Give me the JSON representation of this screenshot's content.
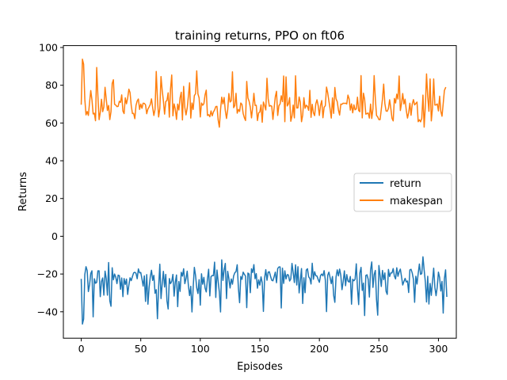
{
  "chart_data": {
    "type": "line",
    "title": "training returns, PPO on ft06",
    "xlabel": "Episodes",
    "ylabel": "Returns",
    "xlim": [
      -15,
      315
    ],
    "ylim": [
      -54,
      101
    ],
    "xticks": [
      0,
      50,
      100,
      150,
      200,
      250,
      300
    ],
    "yticks": [
      -40,
      -20,
      0,
      20,
      40,
      60,
      80,
      100
    ],
    "grid": false,
    "legend": "center-right",
    "series": [
      {
        "name": "return",
        "color": "#1f77b4",
        "values": [
          -22.9,
          -46.5,
          -43.9,
          -20.3,
          -16.1,
          -18.2,
          -29.3,
          -25.6,
          -19.7,
          -18.3,
          -42.7,
          -22.5,
          -24.9,
          -24.4,
          -18.3,
          -18.3,
          -32.0,
          -24.0,
          -22.1,
          -31.2,
          -18.5,
          -22.4,
          -31.2,
          -13.9,
          -34.2,
          -37.1,
          -16.7,
          -23.1,
          -20.0,
          -21.6,
          -25.1,
          -20.6,
          -20.8,
          -28.1,
          -22.1,
          -32.0,
          -22.4,
          -25.5,
          -22.7,
          -30.8,
          -25.9,
          -22.0,
          -23.5,
          -21.3,
          -19.4,
          -19.1,
          -19.6,
          -22.5,
          -17.3,
          -19.4,
          -19.2,
          -22.6,
          -26.4,
          -21.0,
          -34.5,
          -20.3,
          -36.0,
          -27.1,
          -21.4,
          -18.0,
          -23.4,
          -20.7,
          -30.2,
          -28.3,
          -43.7,
          -27.1,
          -14.8,
          -33.0,
          -25.2,
          -18.6,
          -26.9,
          -20.2,
          -34.2,
          -38.5,
          -22.4,
          -25.1,
          -23.9,
          -20.2,
          -31.7,
          -24.4,
          -20.5,
          -37.3,
          -24.0,
          -29.2,
          -19.1,
          -21.1,
          -17.2,
          -25.1,
          -22.4,
          -18.5,
          -26.1,
          -31.4,
          -26.5,
          -40.1,
          -27.3,
          -16.5,
          -20.7,
          -27.4,
          -30.3,
          -23.0,
          -36.5,
          -19.9,
          -25.4,
          -21.8,
          -27.4,
          -29.5,
          -22.7,
          -17.5,
          -31.6,
          -21.4,
          -20.8,
          -20.9,
          -13.7,
          -32.4,
          -17.9,
          -24.0,
          -29.6,
          -40.1,
          -12.5,
          -23.4,
          -17.9,
          -14.4,
          -33.0,
          -18.6,
          -22.4,
          -27.4,
          -22.6,
          -25.4,
          -21.0,
          -19.3,
          -18.7,
          -15.1,
          -27.5,
          -35.2,
          -21.3,
          -22.8,
          -19.0,
          -20.2,
          -21.1,
          -37.8,
          -19.5,
          -20.0,
          -29.9,
          -17.2,
          -19.2,
          -15.0,
          -22.5,
          -19.8,
          -27.5,
          -23.1,
          -25.9,
          -21.5,
          -24.6,
          -39.8,
          -22.2,
          -17.7,
          -23.3,
          -19.0,
          -18.8,
          -21.2,
          -23.3,
          -23.6,
          -21.4,
          -19.0,
          -24.6,
          -17.1,
          -16.3,
          -16.2,
          -38.0,
          -16.9,
          -25.0,
          -18.3,
          -22.6,
          -20.3,
          -20.5,
          -23.7,
          -22.6,
          -14.4,
          -19.2,
          -24.5,
          -15.1,
          -25.8,
          -16.1,
          -30.0,
          -23.6,
          -17.1,
          -35.6,
          -22.0,
          -29.9,
          -17.9,
          -17.2,
          -21.5,
          -22.3,
          -25.3,
          -14.3,
          -22.8,
          -18.8,
          -20.9,
          -21.1,
          -22.9,
          -24.4,
          -20.8,
          -20.0,
          -21.0,
          -18.2,
          -23.2,
          -39.9,
          -20.7,
          -19.0,
          -21.9,
          -25.1,
          -21.3,
          -31.3,
          -35.0,
          -21.6,
          -17.8,
          -21.0,
          -17.4,
          -20.7,
          -28.3,
          -24.1,
          -18.3,
          -26.2,
          -20.3,
          -23.7,
          -24.3,
          -21.3,
          -36.0,
          -22.8,
          -23.6,
          -22.8,
          -14.6,
          -27.5,
          -36.2,
          -19.5,
          -16.5,
          -28.7,
          -24.8,
          -42.0,
          -20.8,
          -20.4,
          -22.8,
          -32.2,
          -17.8,
          -13.6,
          -27.1,
          -20.3,
          -18.1,
          -33.7,
          -41.8,
          -15.5,
          -20.9,
          -26.6,
          -18.1,
          -23.0,
          -19.4,
          -29.1,
          -30.8,
          -17.6,
          -21.3,
          -19.4,
          -19.4,
          -17.1,
          -21.1,
          -22.6,
          -16.7,
          -21.2,
          -18.8,
          -17.4,
          -21.4,
          -25.8,
          -24.0,
          -22.3,
          -24.2,
          -23.7,
          -29.8,
          -17.8,
          -17.5,
          -19.5,
          -22.8,
          -35.0,
          -21.2,
          -25.3,
          -19.7,
          -14.7,
          -20.2,
          -19.8,
          -10.9,
          -17.9,
          -24.1,
          -34.8,
          -21.2,
          -35.9,
          -25.0,
          -31.3,
          -24.0,
          -16.9,
          -27.1,
          -31.5,
          -26.9,
          -19.0,
          -21.9,
          -29.0,
          -23.9,
          -40.7,
          -22.5,
          -17.8,
          -31.8
        ],
        "label_ref": "legend.items.0.label"
      },
      {
        "name": "makespan",
        "color": "#ff7f0e",
        "values": [
          70.0,
          93.8,
          91.1,
          72.7,
          64.3,
          66.1,
          64.0,
          70.8,
          77.2,
          72.3,
          64.8,
          65.2,
          61.2,
          89.4,
          74.2,
          61.8,
          65.7,
          72.6,
          66.0,
          68.5,
          78.9,
          72.7,
          66.6,
          69.3,
          61.8,
          66.0,
          80.9,
          82.9,
          69.9,
          69.5,
          68.7,
          68.8,
          71.5,
          70.9,
          74.9,
          66.3,
          65.0,
          73.3,
          70.2,
          73.2,
          77.9,
          76.1,
          69.2,
          65.0,
          65.1,
          62.3,
          69.3,
          71.7,
          72.7,
          67.2,
          70.0,
          67.8,
          70.5,
          70.4,
          69.6,
          64.9,
          67.4,
          68.5,
          69.9,
          72.8,
          68.1,
          64.0,
          67.3,
          87.3,
          72.7,
          63.2,
          67.6,
          84.6,
          77.3,
          71.7,
          64.7,
          71.4,
          71.9,
          76.0,
          63.1,
          78.0,
          85.4,
          63.8,
          70.1,
          67.4,
          61.9,
          70.0,
          66.9,
          73.3,
          76.3,
          61.6,
          79.4,
          68.2,
          64.3,
          67.9,
          74.3,
          81.3,
          62.6,
          70.6,
          67.2,
          74.5,
          75.5,
          87.6,
          75.4,
          73.3,
          63.2,
          70.6,
          69.4,
          70.2,
          74.9,
          77.4,
          64.0,
          64.4,
          63.3,
          66.4,
          63.8,
          65.8,
          66.9,
          68.7,
          68.8,
          61.6,
          57.8,
          67.1,
          73.7,
          70.1,
          73.5,
          66.6,
          62.4,
          67.0,
          75.6,
          71.1,
          71.8,
          87.1,
          68.1,
          69.2,
          75.7,
          65.2,
          67.2,
          66.1,
          70.6,
          69.8,
          65.0,
          62.8,
          61.3,
          82.0,
          73.3,
          71.5,
          68.4,
          62.7,
          68.4,
          75.7,
          69.3,
          69.4,
          61.3,
          65.4,
          65.8,
          69.6,
          60.4,
          71.1,
          69.2,
          66.9,
          83.7,
          72.9,
          68.9,
          69.2,
          68.9,
          61.9,
          68.0,
          73.9,
          76.8,
          64.0,
          69.1,
          70.1,
          74.4,
          71.3,
          84.9,
          60.7,
          84.4,
          69.0,
          70.1,
          73.4,
          60.9,
          63.7,
          69.5,
          62.7,
          85.0,
          67.9,
          68.0,
          73.8,
          71.0,
          60.7,
          64.2,
          73.4,
          67.8,
          69.4,
          68.8,
          66.7,
          77.3,
          63.0,
          69.9,
          65.4,
          63.9,
          70.2,
          72.3,
          69.2,
          64.0,
          69.4,
          71.9,
          62.8,
          68.3,
          69.2,
          79.0,
          76.0,
          71.6,
          67.5,
          62.6,
          73.3,
          65.1,
          78.8,
          72.8,
          71.3,
          66.9,
          64.2,
          70.0,
          69.9,
          70.5,
          70.4,
          70.5,
          70.1,
          74.8,
          72.8,
          66.8,
          70.1,
          65.4,
          69.6,
          67.0,
          67.5,
          73.7,
          66.6,
          66.0,
          85.1,
          62.7,
          75.8,
          72.6,
          64.7,
          65.0,
          65.3,
          62.6,
          70.0,
          62.4,
          67.6,
          85.1,
          72.9,
          64.0,
          63.2,
          61.8,
          61.8,
          67.2,
          72.7,
          80.6,
          70.3,
          66.4,
          66.2,
          67.7,
          72.3,
          67.8,
          62.5,
          61.1,
          73.0,
          70.6,
          75.3,
          72.7,
          84.9,
          66.6,
          70.3,
          75.6,
          70.1,
          72.6,
          66.7,
          62.6,
          65.5,
          70.5,
          64.1,
          70.0,
          72.4,
          69.6,
          70.3,
          71.1,
          60.7,
          61.7,
          60.6,
          62.4,
          74.8,
          57.8,
          68.8,
          86.0,
          73.8,
          66.2,
          83.3,
          61.1,
          67.8,
          83.3,
          69.5,
          69.6,
          70.1,
          66.4,
          74.2,
          66.2,
          63.6,
          70.3,
          77.2,
          78.7
        ],
        "label_ref": "legend.items.1.label"
      }
    ]
  },
  "title": "training returns, PPO on ft06",
  "xlabel": "Episodes",
  "ylabel": "Returns",
  "x_tick_labels": [
    "0",
    "50",
    "100",
    "150",
    "200",
    "250",
    "300"
  ],
  "y_tick_labels": [
    "−40",
    "−20",
    "0",
    "20",
    "40",
    "60",
    "80",
    "100"
  ],
  "legend": {
    "items": [
      {
        "label": "return",
        "color": "#1f77b4"
      },
      {
        "label": "makespan",
        "color": "#ff7f0e"
      }
    ]
  }
}
